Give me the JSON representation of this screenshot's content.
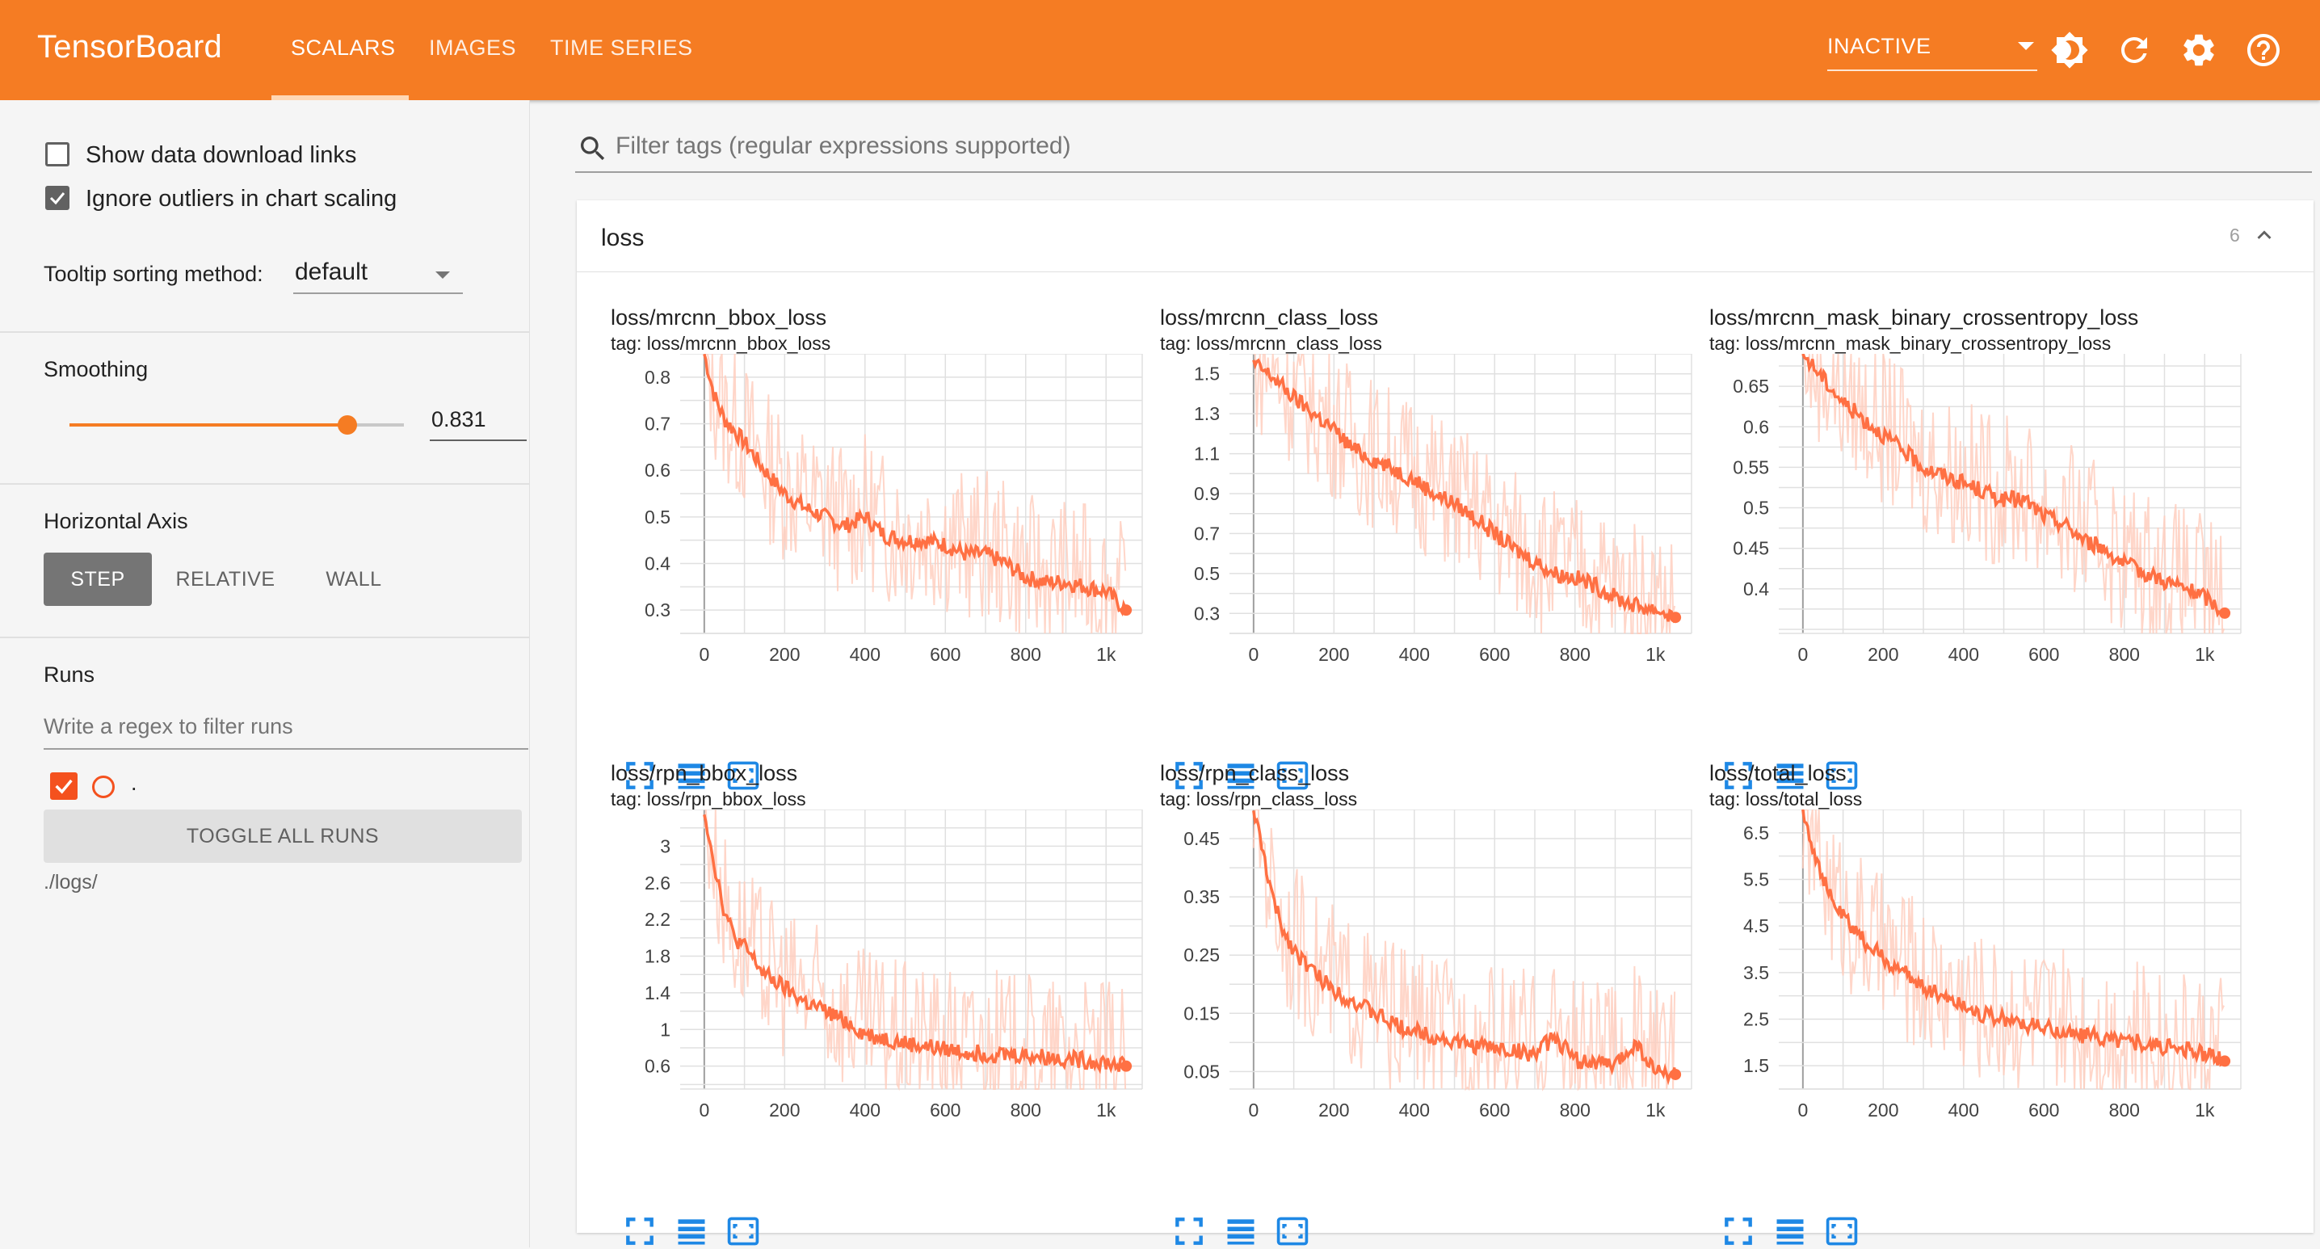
{
  "header": {
    "brand": "TensorBoard",
    "tabs": [
      "SCALARS",
      "IMAGES",
      "TIME SERIES"
    ],
    "active_tab": "SCALARS",
    "status_select": "INACTIVE",
    "colors": {
      "bar": "#f57c23",
      "text": "#ffffff"
    },
    "icons": [
      "theme-toggle-icon",
      "reload-icon",
      "settings-icon",
      "help-icon"
    ]
  },
  "sidebar": {
    "show_download_links": {
      "label": "Show data download links",
      "checked": false
    },
    "ignore_outliers": {
      "label": "Ignore outliers in chart scaling",
      "checked": true
    },
    "tooltip_sorting": {
      "label": "Tooltip sorting method:",
      "value": "default"
    },
    "smoothing": {
      "label": "Smoothing",
      "value": "0.831",
      "fraction": 0.831
    },
    "horizontal_axis": {
      "label": "Horizontal Axis",
      "options": [
        "STEP",
        "RELATIVE",
        "WALL"
      ],
      "selected": "STEP"
    },
    "runs": {
      "label": "Runs",
      "filter_placeholder": "Write a regex to filter runs",
      "run_name": ".",
      "toggle_all": "TOGGLE ALL RUNS",
      "log_dir": "./logs/"
    }
  },
  "main": {
    "filter_placeholder": "Filter tags (regular expressions supported)",
    "group": {
      "name": "loss",
      "count": "6"
    },
    "chart_colors": {
      "smoothed": "#ff7043",
      "raw": "#ffccbc"
    }
  },
  "chart_data": [
    {
      "type": "line",
      "title": "loss/mrcnn_bbox_loss",
      "subtitle": "tag: loss/mrcnn_bbox_loss",
      "x_ticks": [
        "0",
        "200",
        "400",
        "600",
        "800",
        "1k"
      ],
      "y_ticks": [
        "0.3",
        "0.4",
        "0.5",
        "0.6",
        "0.7",
        "0.8"
      ],
      "xlim": [
        -60,
        1090
      ],
      "ylim": [
        0.25,
        0.85
      ],
      "series": [
        {
          "x": [
            0,
            25,
            50,
            100,
            150,
            200,
            250,
            300,
            350,
            400,
            450,
            500,
            550,
            600,
            650,
            700,
            750,
            800,
            850,
            900,
            950,
            1000,
            1050
          ],
          "y": [
            0.85,
            0.76,
            0.71,
            0.66,
            0.6,
            0.55,
            0.52,
            0.5,
            0.48,
            0.5,
            0.46,
            0.45,
            0.45,
            0.44,
            0.42,
            0.42,
            0.4,
            0.37,
            0.36,
            0.36,
            0.35,
            0.34,
            0.3
          ]
        }
      ]
    },
    {
      "type": "line",
      "title": "loss/mrcnn_class_loss",
      "subtitle": "tag: loss/mrcnn_class_loss",
      "x_ticks": [
        "0",
        "200",
        "400",
        "600",
        "800",
        "1k"
      ],
      "y_ticks": [
        "0.3",
        "0.5",
        "0.7",
        "0.9",
        "1.1",
        "1.3",
        "1.5"
      ],
      "xlim": [
        -60,
        1090
      ],
      "ylim": [
        0.2,
        1.6
      ],
      "series": [
        {
          "x": [
            0,
            50,
            100,
            150,
            200,
            250,
            300,
            350,
            400,
            450,
            500,
            550,
            600,
            650,
            700,
            750,
            800,
            850,
            900,
            950,
            1000,
            1050
          ],
          "y": [
            1.55,
            1.48,
            1.38,
            1.3,
            1.22,
            1.12,
            1.07,
            1.02,
            0.97,
            0.9,
            0.85,
            0.78,
            0.7,
            0.62,
            0.56,
            0.5,
            0.48,
            0.44,
            0.38,
            0.34,
            0.32,
            0.28
          ]
        }
      ]
    },
    {
      "type": "line",
      "title": "loss/mrcnn_mask_binary_crossentropy_loss",
      "subtitle": "tag: loss/mrcnn_mask_binary_crossentropy_loss",
      "x_ticks": [
        "0",
        "200",
        "400",
        "600",
        "800",
        "1k"
      ],
      "y_ticks": [
        "0.4",
        "0.45",
        "0.5",
        "0.55",
        "0.6",
        "0.65"
      ],
      "xlim": [
        -60,
        1090
      ],
      "ylim": [
        0.345,
        0.69
      ],
      "series": [
        {
          "x": [
            0,
            50,
            100,
            150,
            200,
            250,
            300,
            350,
            400,
            450,
            500,
            550,
            600,
            650,
            700,
            750,
            800,
            850,
            900,
            950,
            1000,
            1050
          ],
          "y": [
            0.69,
            0.66,
            0.63,
            0.61,
            0.59,
            0.57,
            0.55,
            0.54,
            0.53,
            0.52,
            0.51,
            0.51,
            0.49,
            0.48,
            0.46,
            0.45,
            0.43,
            0.42,
            0.41,
            0.4,
            0.39,
            0.37
          ]
        }
      ]
    },
    {
      "type": "line",
      "title": "loss/rpn_bbox_loss",
      "subtitle": "tag: loss/rpn_bbox_loss",
      "x_ticks": [
        "0",
        "200",
        "400",
        "600",
        "800",
        "1k"
      ],
      "y_ticks": [
        "0.6",
        "1",
        "1.4",
        "1.8",
        "2.2",
        "2.6",
        "3"
      ],
      "xlim": [
        -60,
        1090
      ],
      "ylim": [
        0.35,
        3.4
      ],
      "series": [
        {
          "x": [
            0,
            25,
            50,
            75,
            100,
            150,
            200,
            250,
            300,
            350,
            400,
            450,
            500,
            600,
            700,
            800,
            900,
            1000,
            1050
          ],
          "y": [
            3.4,
            2.8,
            2.3,
            2.0,
            1.9,
            1.6,
            1.45,
            1.3,
            1.2,
            1.1,
            0.95,
            0.9,
            0.85,
            0.78,
            0.74,
            0.72,
            0.68,
            0.64,
            0.6
          ]
        }
      ]
    },
    {
      "type": "line",
      "title": "loss/rpn_class_loss",
      "subtitle": "tag: loss/rpn_class_loss",
      "x_ticks": [
        "0",
        "200",
        "400",
        "600",
        "800",
        "1k"
      ],
      "y_ticks": [
        "0.05",
        "0.15",
        "0.25",
        "0.35",
        "0.45"
      ],
      "xlim": [
        -60,
        1090
      ],
      "ylim": [
        0.02,
        0.5
      ],
      "series": [
        {
          "x": [
            0,
            25,
            50,
            75,
            100,
            150,
            200,
            250,
            300,
            350,
            400,
            450,
            500,
            600,
            700,
            750,
            800,
            900,
            950,
            1000,
            1050
          ],
          "y": [
            0.5,
            0.42,
            0.34,
            0.29,
            0.26,
            0.22,
            0.19,
            0.17,
            0.15,
            0.13,
            0.12,
            0.11,
            0.1,
            0.09,
            0.08,
            0.11,
            0.07,
            0.06,
            0.1,
            0.05,
            0.045
          ]
        }
      ]
    },
    {
      "type": "line",
      "title": "loss/total_loss",
      "subtitle": "tag: loss/total_loss",
      "x_ticks": [
        "0",
        "200",
        "400",
        "600",
        "800",
        "1k"
      ],
      "y_ticks": [
        "1.5",
        "2.5",
        "3.5",
        "4.5",
        "5.5",
        "6.5"
      ],
      "xlim": [
        -60,
        1090
      ],
      "ylim": [
        1.0,
        7.0
      ],
      "series": [
        {
          "x": [
            0,
            25,
            50,
            75,
            100,
            150,
            200,
            250,
            300,
            350,
            400,
            450,
            500,
            600,
            700,
            800,
            900,
            1000,
            1050
          ],
          "y": [
            7.0,
            6.2,
            5.5,
            5.0,
            4.7,
            4.2,
            3.8,
            3.5,
            3.2,
            3.0,
            2.8,
            2.6,
            2.5,
            2.3,
            2.15,
            2.05,
            1.9,
            1.75,
            1.6
          ]
        }
      ]
    }
  ]
}
